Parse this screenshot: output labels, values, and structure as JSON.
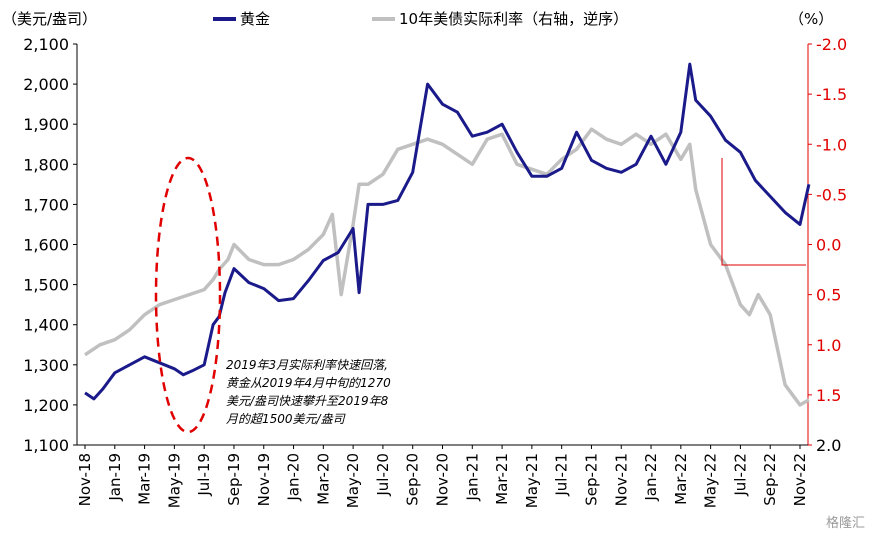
{
  "chart_data": {
    "type": "line",
    "left_unit": "（美元/盎司）",
    "right_unit": "（%）",
    "legend": [
      "黄金",
      "10年美债实际利率（右轴，逆序）"
    ],
    "colors": {
      "gold": "#1a1a8a",
      "rate": "#c0c0c0",
      "right_axis": "#e00000",
      "ellipse": "#e00000"
    },
    "x_ticks": [
      "Nov-18",
      "Jan-19",
      "Mar-19",
      "May-19",
      "Jul-19",
      "Sep-19",
      "Nov-19",
      "Jan-20",
      "Mar-20",
      "May-20",
      "Jul-20",
      "Sep-20",
      "Nov-20",
      "Jan-21",
      "Mar-21",
      "May-21",
      "Jul-21",
      "Sep-21",
      "Nov-21",
      "Jan-22",
      "Mar-22",
      "May-22",
      "Jul-22",
      "Sep-22",
      "Nov-22"
    ],
    "left_axis": {
      "min": 1100,
      "max": 2100,
      "ticks": [
        "1,100",
        "1,200",
        "1,300",
        "1,400",
        "1,500",
        "1,600",
        "1,700",
        "1,800",
        "1,900",
        "2,000",
        "2,100"
      ]
    },
    "right_axis": {
      "min": 2.0,
      "max": -2.0,
      "reversed": true,
      "ticks": [
        "-2.0",
        "-1.5",
        "-1.0",
        "-0.5",
        "0.0",
        "0.5",
        "1.0",
        "1.5",
        "2.0"
      ]
    },
    "series": [
      {
        "name": "黄金",
        "axis": "left",
        "x": [
          0,
          0.3,
          0.6,
          1,
          1.5,
          2,
          2.5,
          3,
          3.3,
          3.6,
          4,
          4.3,
          4.5,
          4.7,
          5,
          5.5,
          6,
          6.5,
          7,
          7.5,
          8,
          8.5,
          9,
          9.2,
          9.5,
          10,
          10.5,
          11,
          11.5,
          12,
          12.5,
          13,
          13.5,
          14,
          14.5,
          15,
          15.5,
          16,
          16.5,
          17,
          17.5,
          18,
          18.5,
          19,
          19.5,
          20,
          20.3,
          20.5,
          21,
          21.5,
          22,
          22.5,
          23,
          23.5,
          24,
          24.3
        ],
        "values": [
          1230,
          1215,
          1240,
          1280,
          1300,
          1320,
          1305,
          1290,
          1275,
          1285,
          1300,
          1400,
          1420,
          1480,
          1540,
          1505,
          1490,
          1460,
          1465,
          1510,
          1560,
          1580,
          1640,
          1480,
          1700,
          1700,
          1710,
          1780,
          2000,
          1950,
          1930,
          1870,
          1880,
          1900,
          1830,
          1770,
          1770,
          1790,
          1880,
          1810,
          1790,
          1780,
          1800,
          1870,
          1800,
          1880,
          2050,
          1960,
          1920,
          1860,
          1830,
          1760,
          1720,
          1680,
          1650,
          1750
        ]
      },
      {
        "name": "10年美债实际利率（右轴，逆序）",
        "axis": "right",
        "x": [
          0,
          0.5,
          1,
          1.5,
          2,
          2.5,
          3,
          3.5,
          4,
          4.3,
          4.5,
          4.8,
          5,
          5.5,
          6,
          6.5,
          7,
          7.5,
          8,
          8.3,
          8.6,
          9,
          9.2,
          9.5,
          10,
          10.5,
          11,
          11.5,
          12,
          12.5,
          13,
          13.5,
          14,
          14.5,
          15,
          15.5,
          16,
          16.5,
          17,
          17.5,
          18,
          18.5,
          19,
          19.5,
          20,
          20.3,
          20.5,
          21,
          21.5,
          22,
          22.3,
          22.6,
          23,
          23.5,
          24,
          24.3
        ],
        "values": [
          1.1,
          1.0,
          0.95,
          0.85,
          0.7,
          0.6,
          0.55,
          0.5,
          0.45,
          0.35,
          0.25,
          0.15,
          0.0,
          0.15,
          0.2,
          0.2,
          0.15,
          0.05,
          -0.1,
          -0.3,
          0.5,
          -0.2,
          -0.6,
          -0.6,
          -0.7,
          -0.95,
          -1.0,
          -1.05,
          -1.0,
          -0.9,
          -0.8,
          -1.05,
          -1.1,
          -0.8,
          -0.75,
          -0.7,
          -0.85,
          -0.95,
          -1.15,
          -1.05,
          -1.0,
          -1.1,
          -1.0,
          -1.1,
          -0.85,
          -1.0,
          -0.55,
          0.0,
          0.2,
          0.6,
          0.7,
          0.5,
          0.7,
          1.4,
          1.6,
          1.55
        ]
      }
    ],
    "annotation": [
      "2019年3月实际利率快速回落,",
      "黄金从2019年4月中旬的1270",
      "美元/盎司快速攀升至2019年8",
      "月的超1500美元/盎司"
    ],
    "watermark": "格隆汇"
  }
}
